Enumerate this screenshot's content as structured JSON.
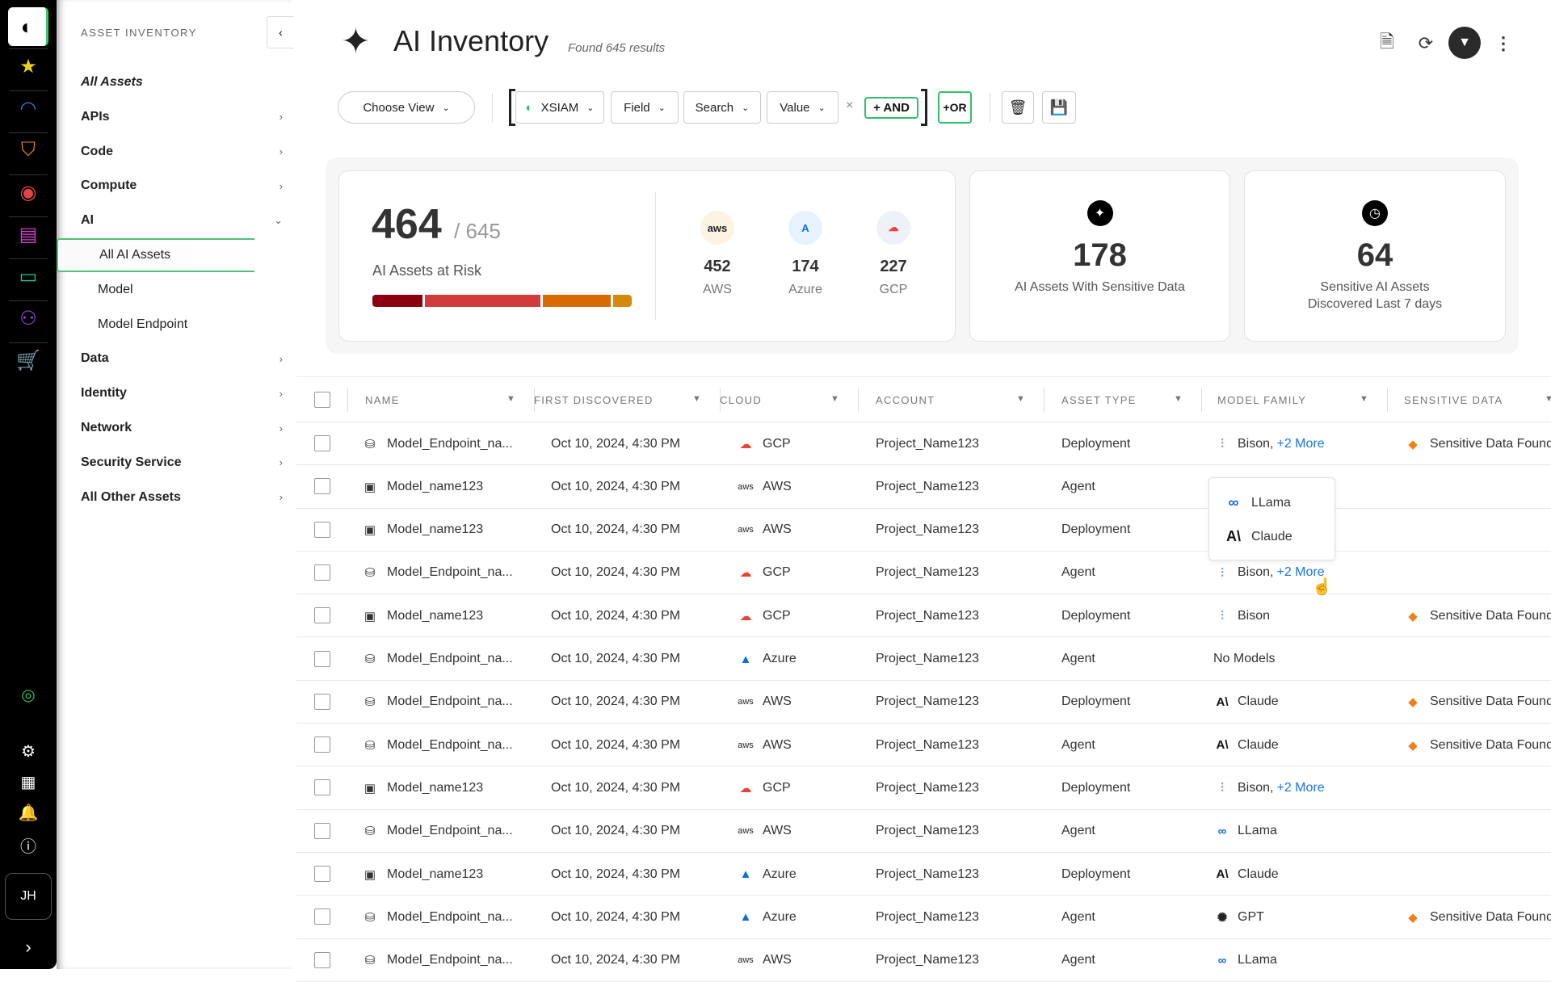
{
  "rail": {
    "items": [
      "favorites-star-icon",
      "dashboard-gauge-icon",
      "shield-icon",
      "eye-icon",
      "document-icon",
      "monitor-icon",
      "network-icon",
      "cart-icon"
    ],
    "bottom": [
      "status-orb-icon",
      "gear-icon",
      "apps-grid-icon",
      "bell-icon",
      "help-icon"
    ],
    "avatar": "JH",
    "expand": "›"
  },
  "sidebar": {
    "header": "ASSET INVENTORY",
    "items": [
      {
        "label": "All Assets",
        "style": "italic"
      },
      {
        "label": "APIs",
        "chevron": "›"
      },
      {
        "label": "Code",
        "chevron": "›"
      },
      {
        "label": "Compute",
        "chevron": "›"
      },
      {
        "label": "AI",
        "chevron": "⌄"
      },
      {
        "label": "All AI Assets",
        "sub": true,
        "active": true
      },
      {
        "label": "Model",
        "sub": true
      },
      {
        "label": "Model Endpoint",
        "sub": true
      },
      {
        "label": "Data",
        "chevron": "›"
      },
      {
        "label": "Identity",
        "chevron": "›"
      },
      {
        "label": "Network",
        "chevron": "›"
      },
      {
        "label": "Security Service",
        "chevron": "›"
      },
      {
        "label": "All Other Assets",
        "chevron": "›"
      }
    ]
  },
  "header": {
    "title": "AI Inventory",
    "subtitle": "Found 645 results"
  },
  "filters": {
    "choose_view": "Choose View",
    "source": "XSIAM",
    "field": "Field",
    "search": "Search",
    "value": "Value",
    "clear": "×",
    "and": "+ AND",
    "or": "+OR"
  },
  "stats": {
    "at_risk": "464",
    "total": "/ 645",
    "at_risk_label": "AI Assets at Risk",
    "risk_bar": [
      {
        "value": 20,
        "color": "#8b0010"
      },
      {
        "value": 45,
        "color": "#d23b3b"
      },
      {
        "value": 27,
        "color": "#d96a00"
      },
      {
        "value": 8,
        "color": "#d4890a"
      }
    ],
    "clouds": [
      {
        "abbr": "aws",
        "count": "452",
        "label": "AWS",
        "bg": "#fdf3e3",
        "color": "#222"
      },
      {
        "abbr": "A",
        "count": "174",
        "label": "Azure",
        "bg": "#e6f2fc",
        "color": "#0a6fd6"
      },
      {
        "abbr": "☁",
        "count": "227",
        "label": "GCP",
        "bg": "#eef2f8",
        "color": "#ea4335"
      }
    ],
    "sensitive": {
      "count": "178",
      "label": "AI Assets With Sensitive Data"
    },
    "recent": {
      "count": "64",
      "label1": "Sensitive AI Assets",
      "label2": "Discovered Last 7 days"
    }
  },
  "table": {
    "columns": [
      "NAME",
      "FIRST DISCOVERED",
      "CLOUD",
      "ACCOUNT",
      "ASSET TYPE",
      "MODEL FAMILY",
      "SENSITIVE DATA"
    ],
    "rows": [
      {
        "type_icon": "endpoint",
        "name": "Model_Endpoint_na...",
        "date": "Oct 10, 2024, 4:30 PM",
        "cloud": "GCP",
        "account": "Project_Name123",
        "asset_type": "Deployment",
        "model": "Bison,",
        "more": "+2 More",
        "model_icon": "bison",
        "sensitive": "Sensitive Data Found"
      },
      {
        "type_icon": "model",
        "name": "Model_name123",
        "date": "Oct 10, 2024, 4:30 PM",
        "cloud": "AWS",
        "account": "Project_Name123",
        "asset_type": "Agent",
        "model": "",
        "more": "",
        "model_icon": "",
        "sensitive": ""
      },
      {
        "type_icon": "model",
        "name": "Model_name123",
        "date": "Oct 10, 2024, 4:30 PM",
        "cloud": "AWS",
        "account": "Project_Name123",
        "asset_type": "Deployment",
        "model": "",
        "more": "",
        "model_icon": "",
        "sensitive": ""
      },
      {
        "type_icon": "endpoint",
        "name": "Model_Endpoint_na...",
        "date": "Oct 10, 2024, 4:30 PM",
        "cloud": "GCP",
        "account": "Project_Name123",
        "asset_type": "Agent",
        "model": "Bison,",
        "more": "+2 More",
        "model_icon": "bison",
        "sensitive": ""
      },
      {
        "type_icon": "model",
        "name": "Model_name123",
        "date": "Oct 10, 2024, 4:30 PM",
        "cloud": "GCP",
        "account": "Project_Name123",
        "asset_type": "Deployment",
        "model": "Bison",
        "more": "",
        "model_icon": "bison",
        "sensitive": "Sensitive Data Found"
      },
      {
        "type_icon": "endpoint",
        "name": "Model_Endpoint_na...",
        "date": "Oct 10, 2024, 4:30 PM",
        "cloud": "Azure",
        "account": "Project_Name123",
        "asset_type": "Agent",
        "model": "No Models",
        "more": "",
        "model_icon": "",
        "sensitive": ""
      },
      {
        "type_icon": "endpoint",
        "name": "Model_Endpoint_na...",
        "date": "Oct 10, 2024, 4:30 PM",
        "cloud": "AWS",
        "account": "Project_Name123",
        "asset_type": "Deployment",
        "model": "Claude",
        "more": "",
        "model_icon": "claude",
        "sensitive": "Sensitive Data Found"
      },
      {
        "type_icon": "endpoint",
        "name": "Model_Endpoint_na...",
        "date": "Oct 10, 2024, 4:30 PM",
        "cloud": "AWS",
        "account": "Project_Name123",
        "asset_type": "Agent",
        "model": "Claude",
        "more": "",
        "model_icon": "claude",
        "sensitive": "Sensitive Data Found"
      },
      {
        "type_icon": "model",
        "name": "Model_name123",
        "date": "Oct 10, 2024, 4:30 PM",
        "cloud": "GCP",
        "account": "Project_Name123",
        "asset_type": "Deployment",
        "model": "Bison,",
        "more": "+2 More",
        "model_icon": "bison",
        "sensitive": ""
      },
      {
        "type_icon": "endpoint",
        "name": "Model_Endpoint_na...",
        "date": "Oct 10, 2024, 4:30 PM",
        "cloud": "AWS",
        "account": "Project_Name123",
        "asset_type": "Agent",
        "model": "LLama",
        "more": "",
        "model_icon": "llama",
        "sensitive": ""
      },
      {
        "type_icon": "model",
        "name": "Model_name123",
        "date": "Oct 10, 2024, 4:30 PM",
        "cloud": "Azure",
        "account": "Project_Name123",
        "asset_type": "Deployment",
        "model": "Claude",
        "more": "",
        "model_icon": "claude",
        "sensitive": ""
      },
      {
        "type_icon": "endpoint",
        "name": "Model_Endpoint_na...",
        "date": "Oct 10, 2024, 4:30 PM",
        "cloud": "Azure",
        "account": "Project_Name123",
        "asset_type": "Agent",
        "model": "GPT",
        "more": "",
        "model_icon": "gpt",
        "sensitive": "Sensitive Data Found"
      },
      {
        "type_icon": "endpoint",
        "name": "Model_Endpoint_na...",
        "date": "Oct 10, 2024, 4:30 PM",
        "cloud": "AWS",
        "account": "Project_Name123",
        "asset_type": "Agent",
        "model": "LLama",
        "more": "",
        "model_icon": "llama",
        "sensitive": ""
      }
    ]
  },
  "popover": {
    "items": [
      {
        "label": "LLama",
        "icon": "llama"
      },
      {
        "label": "Claude",
        "icon": "claude"
      }
    ]
  },
  "colors": {
    "accent": "#2bc26a",
    "link": "#1a73e8",
    "sensitive": "#f07f1a"
  }
}
